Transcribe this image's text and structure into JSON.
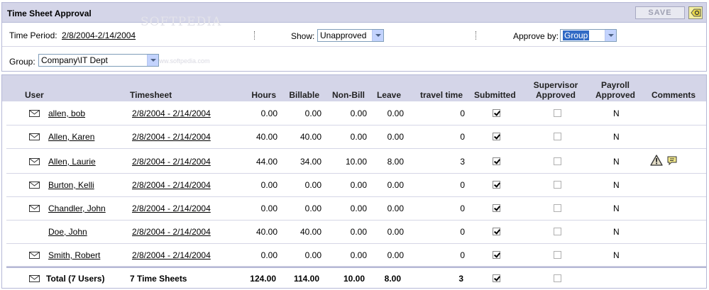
{
  "header": {
    "title": "Time Sheet Approval",
    "save_label": "SAVE",
    "watermark": "SOFTPEDIA",
    "watermark_sub": "www.softpedia.com"
  },
  "filters": {
    "time_period_label": "Time Period:",
    "time_period_value": "2/8/2004-2/14/2004",
    "show_label": "Show:",
    "show_value": "Unapproved",
    "approve_by_label": "Approve by:",
    "approve_by_value": "Group",
    "group_label": "Group:",
    "group_value": "Company\\IT Dept"
  },
  "columns": {
    "user": "User",
    "timesheet": "Timesheet",
    "hours": "Hours",
    "billable": "Billable",
    "nonbill": "Non-Bill",
    "leave": "Leave",
    "travel": "travel time",
    "submitted": "Submitted",
    "supervisor_1": "Supervisor",
    "supervisor_2": "Approved",
    "payroll_1": "Payroll",
    "payroll_2": "Approved",
    "comments": "Comments"
  },
  "rows": [
    {
      "user": "allen, bob",
      "timesheet": "2/8/2004 - 2/14/2004",
      "hours": "0.00",
      "billable": "0.00",
      "nonbill": "0.00",
      "leave": "0.00",
      "travel": "0",
      "payroll": "N"
    },
    {
      "user": "Allen, Karen",
      "timesheet": "2/8/2004 - 2/14/2004",
      "hours": "40.00",
      "billable": "40.00",
      "nonbill": "0.00",
      "leave": "0.00",
      "travel": "0",
      "payroll": "N"
    },
    {
      "user": "Allen, Laurie",
      "timesheet": "2/8/2004 - 2/14/2004",
      "hours": "44.00",
      "billable": "34.00",
      "nonbill": "10.00",
      "leave": "8.00",
      "travel": "3",
      "payroll": "N"
    },
    {
      "user": "Burton, Kelli",
      "timesheet": "2/8/2004 - 2/14/2004",
      "hours": "0.00",
      "billable": "0.00",
      "nonbill": "0.00",
      "leave": "0.00",
      "travel": "0",
      "payroll": "N"
    },
    {
      "user": "Chandler, John",
      "timesheet": "2/8/2004 - 2/14/2004",
      "hours": "0.00",
      "billable": "0.00",
      "nonbill": "0.00",
      "leave": "0.00",
      "travel": "0",
      "payroll": "N"
    },
    {
      "user": "Doe, John",
      "timesheet": "2/8/2004 - 2/14/2004",
      "hours": "40.00",
      "billable": "40.00",
      "nonbill": "0.00",
      "leave": "0.00",
      "travel": "0",
      "payroll": "N"
    },
    {
      "user": "Smith, Robert",
      "timesheet": "2/8/2004 - 2/14/2004",
      "hours": "0.00",
      "billable": "0.00",
      "nonbill": "0.00",
      "leave": "0.00",
      "travel": "0",
      "payroll": "N"
    }
  ],
  "total": {
    "user": "Total (7 Users)",
    "timesheet": "7 Time Sheets",
    "hours": "124.00",
    "billable": "114.00",
    "nonbill": "10.00",
    "leave": "8.00",
    "travel": "3"
  },
  "colors": {
    "header_bg": "#d4d5e8",
    "border": "#b5b8d6"
  }
}
